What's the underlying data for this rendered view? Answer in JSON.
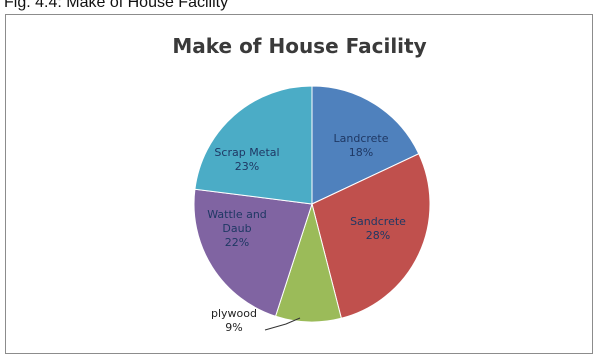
{
  "figure_caption": "Fig. 4.4: Make of House Facility",
  "chart_data": {
    "type": "pie",
    "title": "Make of House Facility",
    "slices": [
      {
        "name": "Landcrete",
        "label": "Landcrete\n18%",
        "value": 18,
        "color": "#4f81bd"
      },
      {
        "name": "Sandcrete",
        "label": "Sandcrete\n28%",
        "value": 28,
        "color": "#c0504d"
      },
      {
        "name": "plywood",
        "label": "plywood\n9%",
        "value": 9,
        "color": "#9bbb59"
      },
      {
        "name": "Wattle and Daub",
        "label": "Wattle and\nDaub\n22%",
        "value": 22,
        "color": "#8064a2"
      },
      {
        "name": "Scrap Metal",
        "label": "Scrap Metal\n23%",
        "value": 23,
        "color": "#4bacc6"
      }
    ],
    "start_angle_deg": 0,
    "direction": "clockwise"
  }
}
